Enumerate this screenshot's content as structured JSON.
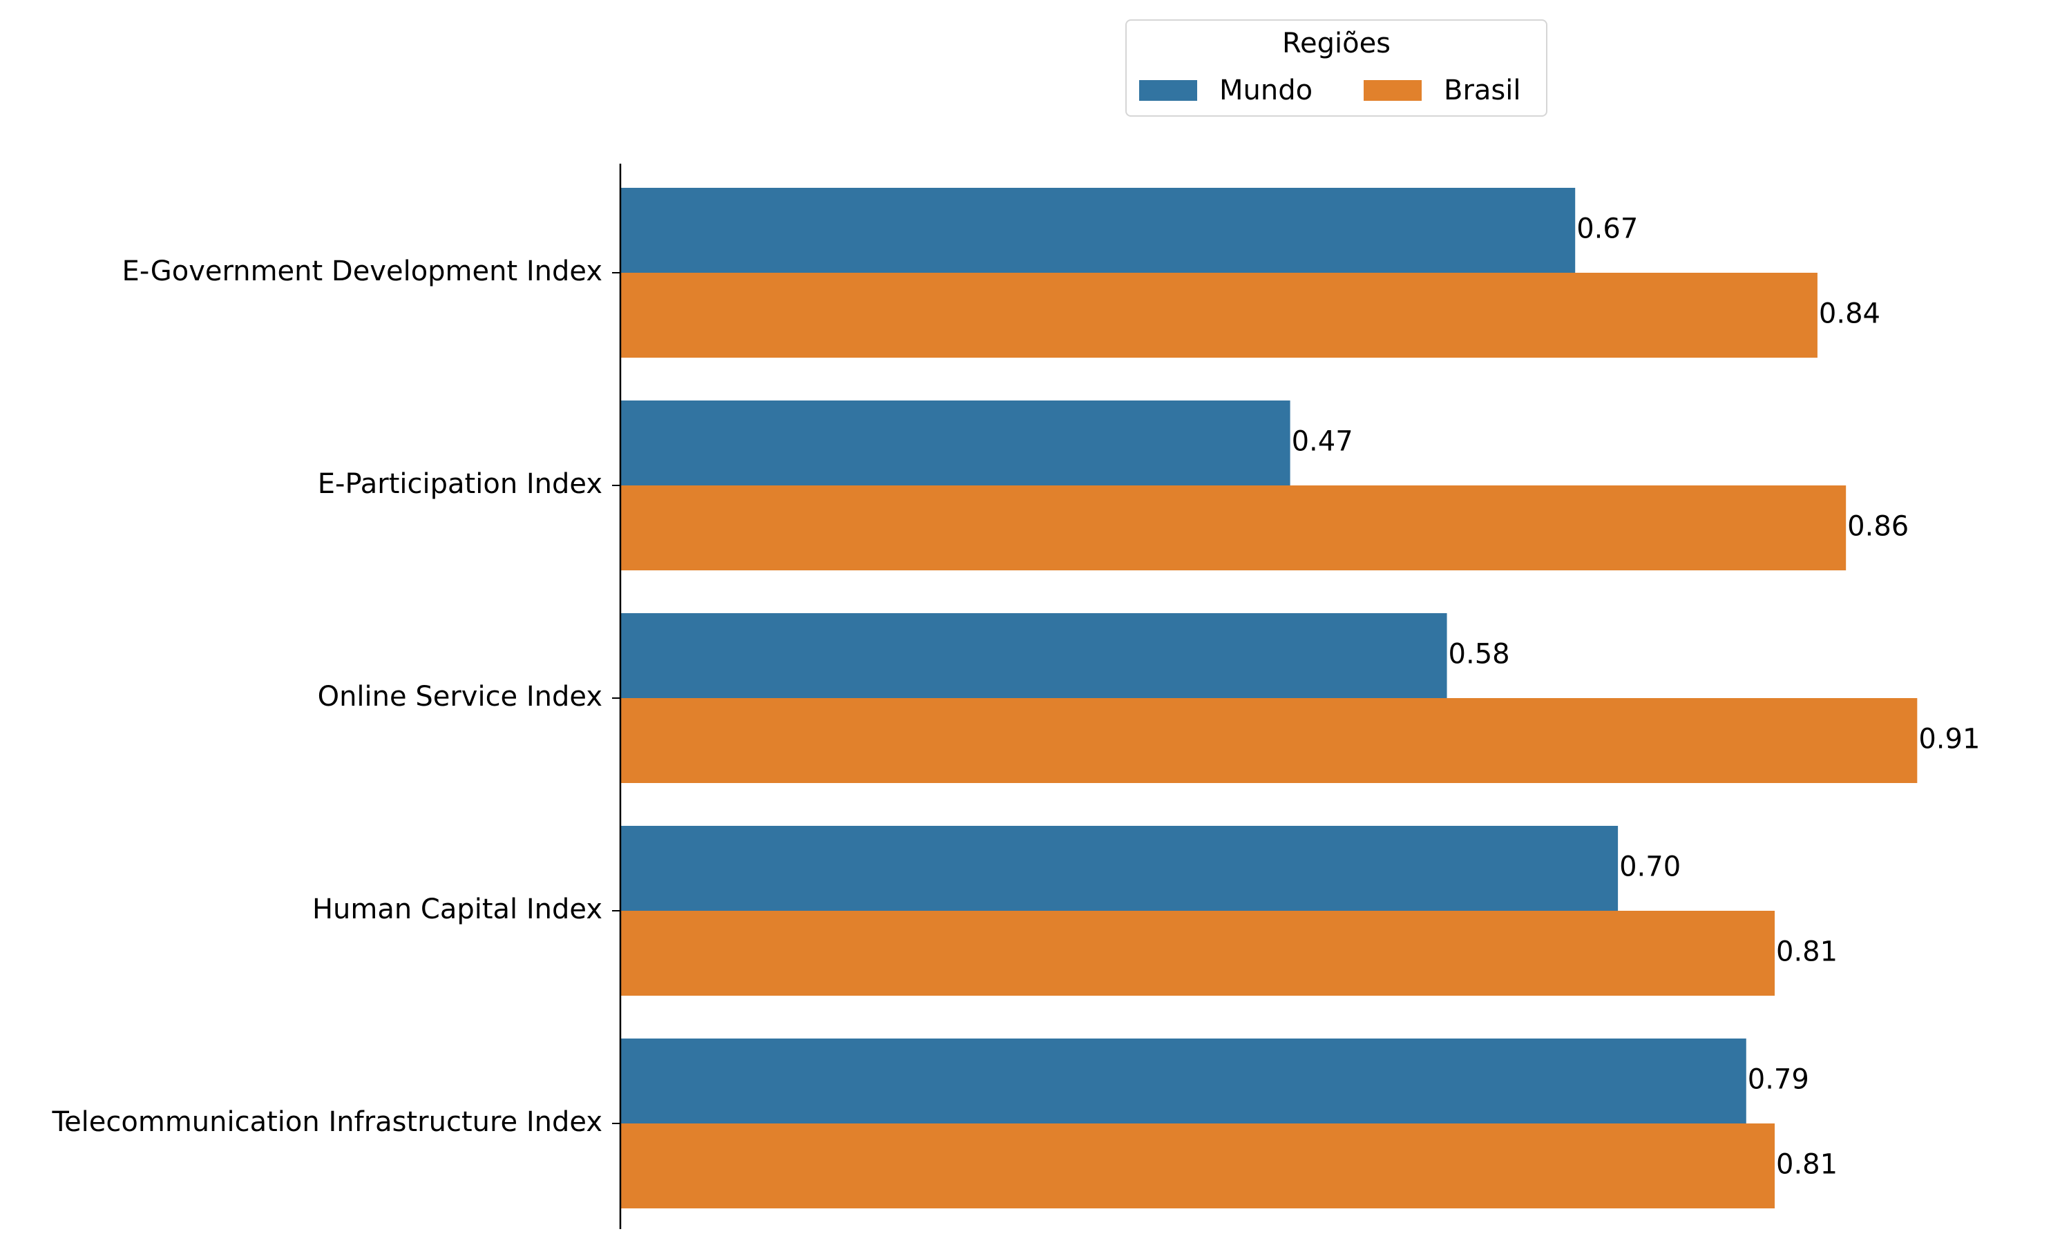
{
  "chart_data": {
    "type": "bar",
    "orientation": "horizontal",
    "categories": [
      "E-Government Development Index",
      "E-Participation Index",
      "Online Service Index",
      "Human Capital Index",
      "Telecommunication Infrastructure Index"
    ],
    "series": [
      {
        "name": "Mundo",
        "color": "#3274a1",
        "values": [
          0.67,
          0.47,
          0.58,
          0.7,
          0.79
        ],
        "labels": [
          "0.67",
          "0.47",
          "0.58",
          "0.70",
          "0.79"
        ]
      },
      {
        "name": "Brasil",
        "color": "#e1812c",
        "values": [
          0.84,
          0.86,
          0.91,
          0.81,
          0.81
        ],
        "labels": [
          "0.84",
          "0.86",
          "0.91",
          "0.81",
          "0.81"
        ]
      }
    ],
    "legend": {
      "title": "Regiões",
      "placement": "top-center"
    },
    "xlim": [
      0,
      1.0
    ],
    "grid": false,
    "xaxis_visible": false
  }
}
